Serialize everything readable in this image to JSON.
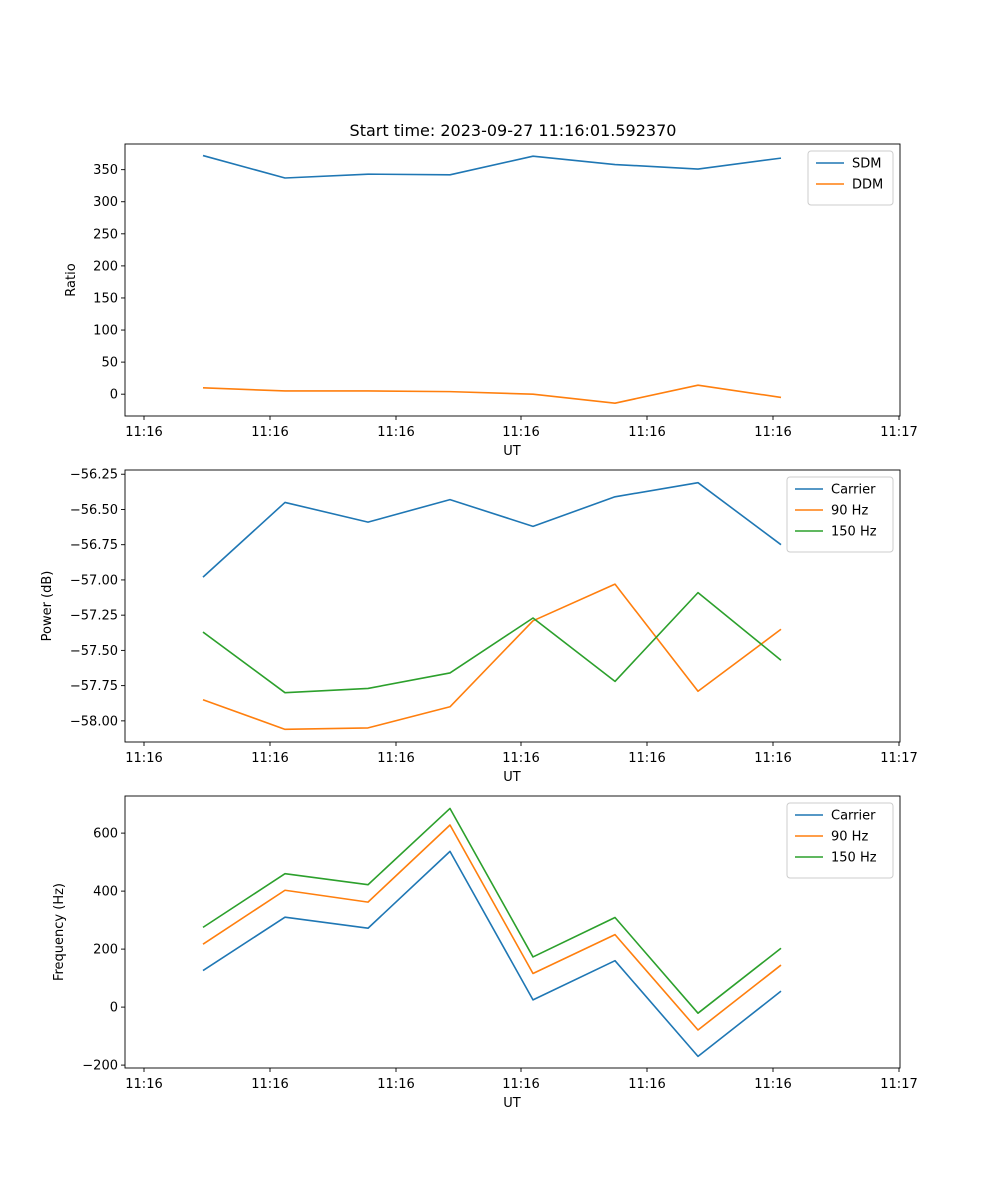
{
  "title": "Start time: 2023-09-27 11:16:01.592370",
  "colors": {
    "c0": "#1f77b4",
    "c1": "#ff7f0e",
    "c2": "#2ca02c"
  },
  "chart_data": [
    {
      "type": "line",
      "name": "ratio",
      "xlabel": "UT",
      "ylabel": "Ratio",
      "x_tick_labels": [
        "11:16",
        "11:16",
        "11:16",
        "11:16",
        "11:16",
        "11:16",
        "11:17"
      ],
      "ylim": [
        -34,
        390
      ],
      "yticks": [
        0,
        50,
        100,
        150,
        200,
        250,
        300,
        350
      ],
      "y_tick_labels": [
        "0",
        "50",
        "100",
        "150",
        "200",
        "250",
        "300",
        "350"
      ],
      "legend": "upper right",
      "series": [
        {
          "name": "SDM",
          "color": "#1f77b4",
          "values": [
            372,
            337,
            343,
            342,
            371,
            358,
            351,
            368
          ]
        },
        {
          "name": "DDM",
          "color": "#ff7f0e",
          "values": [
            10,
            5,
            5,
            4,
            0,
            -14,
            14,
            -5
          ]
        }
      ]
    },
    {
      "type": "line",
      "name": "power",
      "xlabel": "UT",
      "ylabel": "Power (dB)",
      "x_tick_labels": [
        "11:16",
        "11:16",
        "11:16",
        "11:16",
        "11:16",
        "11:16",
        "11:17"
      ],
      "ylim": [
        -58.15,
        -56.22
      ],
      "yticks": [
        -58.0,
        -57.75,
        -57.5,
        -57.25,
        -57.0,
        -56.75,
        -56.5,
        -56.25
      ],
      "y_tick_labels": [
        "−58.00",
        "−57.75",
        "−57.50",
        "−57.25",
        "−57.00",
        "−56.75",
        "−56.50",
        "−56.25"
      ],
      "legend": "upper right",
      "series": [
        {
          "name": "Carrier",
          "color": "#1f77b4",
          "values": [
            -56.98,
            -56.45,
            -56.59,
            -56.43,
            -56.62,
            -56.41,
            -56.31,
            -56.75
          ]
        },
        {
          "name": "90 Hz",
          "color": "#ff7f0e",
          "values": [
            -57.85,
            -58.06,
            -58.05,
            -57.9,
            -57.29,
            -57.03,
            -57.79,
            -57.35
          ]
        },
        {
          "name": "150 Hz",
          "color": "#2ca02c",
          "values": [
            -57.37,
            -57.8,
            -57.77,
            -57.66,
            -57.27,
            -57.72,
            -57.09,
            -57.57
          ]
        }
      ]
    },
    {
      "type": "line",
      "name": "frequency",
      "xlabel": "UT",
      "ylabel": "Frequency (Hz)",
      "x_tick_labels": [
        "11:16",
        "11:16",
        "11:16",
        "11:16",
        "11:16",
        "11:16",
        "11:17"
      ],
      "ylim": [
        -210,
        728
      ],
      "yticks": [
        -200,
        0,
        200,
        400,
        600
      ],
      "y_tick_labels": [
        "−200",
        "0",
        "200",
        "400",
        "600"
      ],
      "legend": "upper right",
      "series": [
        {
          "name": "Carrier",
          "color": "#1f77b4",
          "values": [
            126,
            310,
            272,
            537,
            25,
            160,
            -170,
            55
          ]
        },
        {
          "name": "90 Hz",
          "color": "#ff7f0e",
          "values": [
            217,
            403,
            362,
            628,
            116,
            250,
            -79,
            145
          ]
        },
        {
          "name": "150 Hz",
          "color": "#2ca02c",
          "values": [
            275,
            460,
            422,
            685,
            173,
            309,
            -21,
            203
          ]
        }
      ]
    }
  ]
}
